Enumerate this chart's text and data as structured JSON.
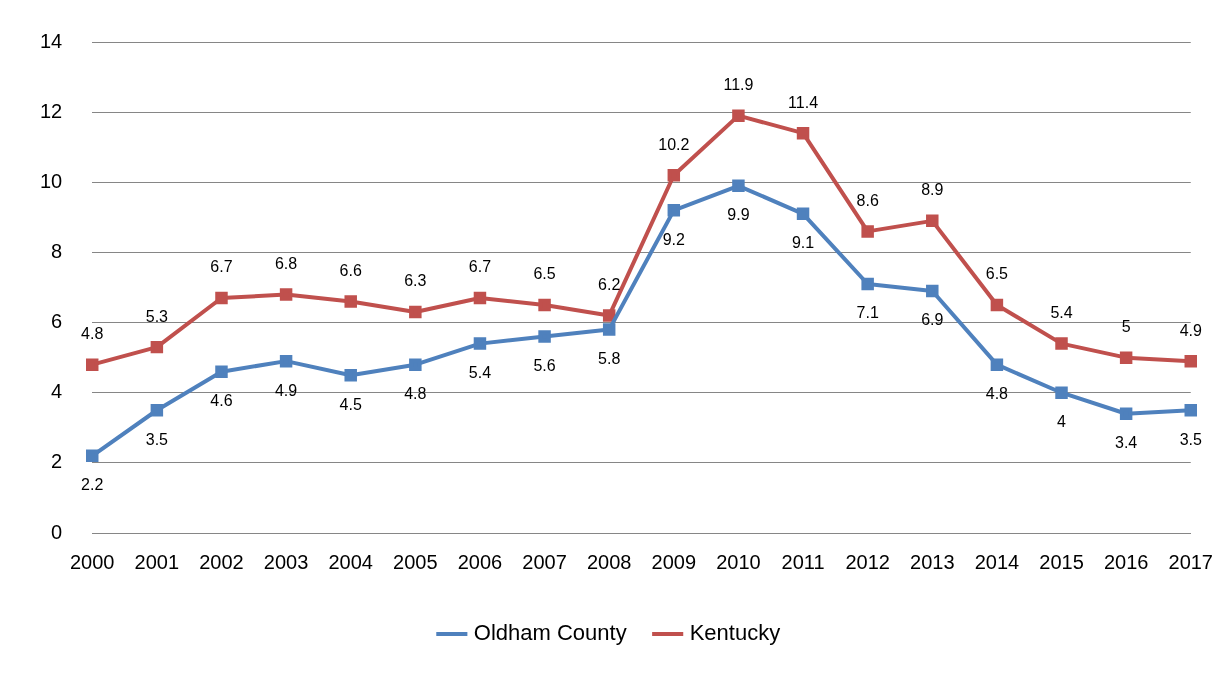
{
  "chart_data": {
    "type": "line",
    "categories": [
      "2000",
      "2001",
      "2002",
      "2003",
      "2004",
      "2005",
      "2006",
      "2007",
      "2008",
      "2009",
      "2010",
      "2011",
      "2012",
      "2013",
      "2014",
      "2015",
      "2016",
      "2017"
    ],
    "series": [
      {
        "name": "Oldham County",
        "color": "#4f81bd",
        "values": [
          2.2,
          3.5,
          4.6,
          4.9,
          4.5,
          4.8,
          5.4,
          5.6,
          5.8,
          9.2,
          9.9,
          9.1,
          7.1,
          6.9,
          4.8,
          4,
          3.4,
          3.5
        ]
      },
      {
        "name": "Kentucky",
        "color": "#c0504d",
        "values": [
          4.8,
          5.3,
          6.7,
          6.8,
          6.6,
          6.3,
          6.7,
          6.5,
          6.2,
          10.2,
          11.9,
          11.4,
          8.6,
          8.9,
          6.5,
          5.4,
          5,
          4.9
        ]
      }
    ],
    "ylim": [
      0,
      14
    ],
    "yticks": [
      0,
      2,
      4,
      6,
      8,
      10,
      12,
      14
    ],
    "grid": "y",
    "legend": "bottom",
    "marker": "square",
    "line_style": "solid",
    "data_labels": true
  }
}
